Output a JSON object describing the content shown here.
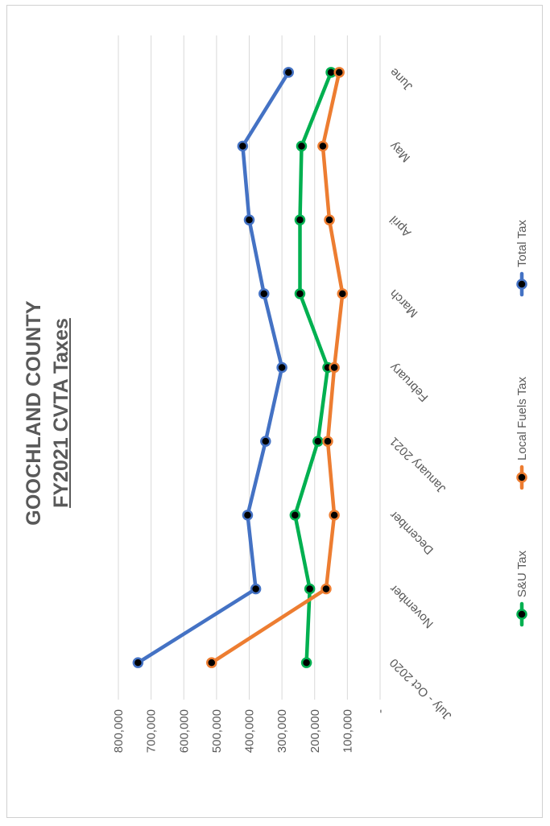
{
  "chart_data": {
    "type": "line",
    "title": "GOOCHLAND COUNTY",
    "subtitle": "FY2021 CVTA Taxes",
    "categories": [
      "July - Oct 2020",
      "November",
      "December",
      "January 2021",
      "February",
      "March",
      "April",
      "May",
      "June"
    ],
    "y_tick_labels": [
      "-",
      "100,000",
      "200,000",
      "300,000",
      "400,000",
      "500,000",
      "600,000",
      "700,000",
      "800,000"
    ],
    "ylim": [
      0,
      800000
    ],
    "grid": true,
    "legend_position": "bottom",
    "series": [
      {
        "name": "S&U Tax",
        "color": "#00b050",
        "values": [
          225000,
          215000,
          260000,
          190000,
          160000,
          245000,
          245000,
          240000,
          150000
        ]
      },
      {
        "name": "Local Fuels Tax",
        "color": "#ed7d31",
        "values": [
          515000,
          165000,
          140000,
          160000,
          140000,
          115000,
          155000,
          175000,
          125000
        ]
      },
      {
        "name": "Total Tax",
        "color": "#4472c4",
        "values": [
          740000,
          380000,
          405000,
          350000,
          300000,
          355000,
          400000,
          420000,
          280000
        ]
      }
    ]
  }
}
